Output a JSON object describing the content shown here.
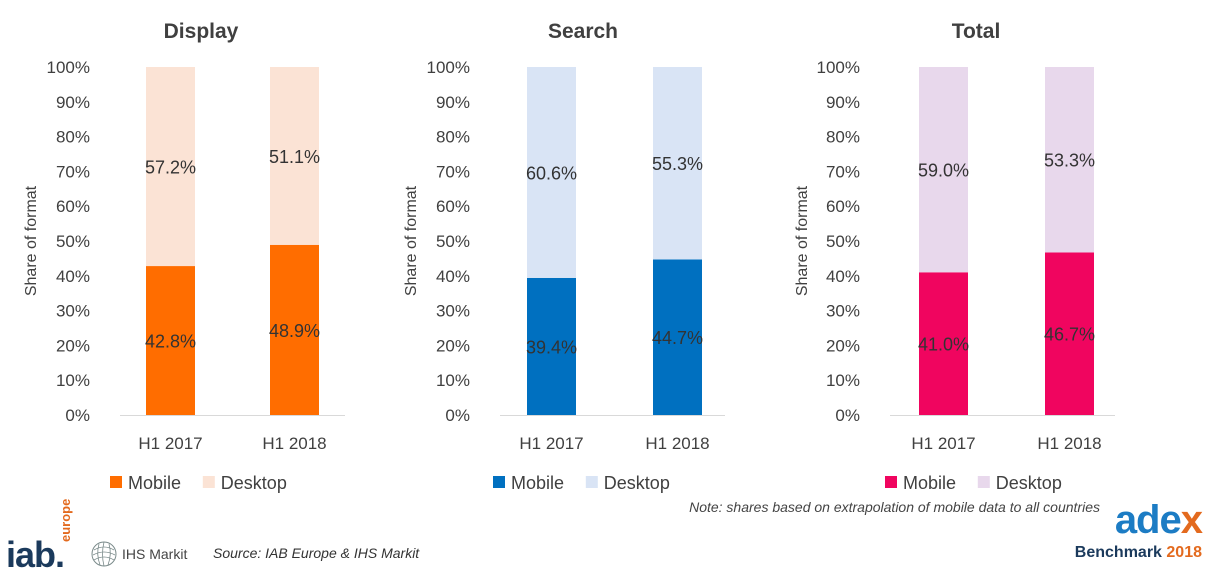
{
  "chart_data": [
    {
      "type": "bar",
      "stacked": true,
      "title": "Display",
      "ylabel": "Share of format",
      "xlabel": "",
      "ylim": [
        0,
        100
      ],
      "yticks": [
        "0%",
        "10%",
        "20%",
        "30%",
        "40%",
        "50%",
        "60%",
        "70%",
        "80%",
        "90%",
        "100%"
      ],
      "categories": [
        "H1 2017",
        "H1 2018"
      ],
      "series": [
        {
          "name": "Mobile",
          "values": [
            42.8,
            48.9
          ],
          "labels": [
            "42.8%",
            "48.9%"
          ],
          "color": "#ff6d00"
        },
        {
          "name": "Desktop",
          "values": [
            57.2,
            51.1
          ],
          "labels": [
            "57.2%",
            "51.1%"
          ],
          "color": "#fbe3d5"
        }
      ]
    },
    {
      "type": "bar",
      "stacked": true,
      "title": "Search",
      "ylabel": "Share of format",
      "xlabel": "",
      "ylim": [
        0,
        100
      ],
      "yticks": [
        "0%",
        "10%",
        "20%",
        "30%",
        "40%",
        "50%",
        "60%",
        "70%",
        "80%",
        "90%",
        "100%"
      ],
      "categories": [
        "H1 2017",
        "H1 2018"
      ],
      "series": [
        {
          "name": "Mobile",
          "values": [
            39.4,
            44.7
          ],
          "labels": [
            "39.4%",
            "44.7%"
          ],
          "color": "#0070c0"
        },
        {
          "name": "Desktop",
          "values": [
            60.6,
            55.3
          ],
          "labels": [
            "60.6%",
            "55.3%"
          ],
          "color": "#d9e4f5"
        }
      ]
    },
    {
      "type": "bar",
      "stacked": true,
      "title": "Total",
      "ylabel": "Share of format",
      "xlabel": "",
      "ylim": [
        0,
        100
      ],
      "yticks": [
        "0%",
        "10%",
        "20%",
        "30%",
        "40%",
        "50%",
        "60%",
        "70%",
        "80%",
        "90%",
        "100%"
      ],
      "categories": [
        "H1 2017",
        "H1 2018"
      ],
      "series": [
        {
          "name": "Mobile",
          "values": [
            41.0,
            46.7
          ],
          "labels": [
            "41.0%",
            "46.7%"
          ],
          "color": "#f0055f"
        },
        {
          "name": "Desktop",
          "values": [
            59.0,
            53.3
          ],
          "labels": [
            "59.0%",
            "53.3%"
          ],
          "color": "#e8d8ec"
        }
      ]
    }
  ],
  "note": "Note: shares based on extrapolation of mobile data to all countries",
  "source": "Source: IAB Europe & IHS Markit",
  "logos": {
    "iab_word": "iab.",
    "iab_sub": "europe",
    "ihs": "IHS Markit",
    "adex_word_a": "ade",
    "adex_word_b": "x",
    "adex_sub": "Benchmark",
    "adex_year": "2018"
  }
}
